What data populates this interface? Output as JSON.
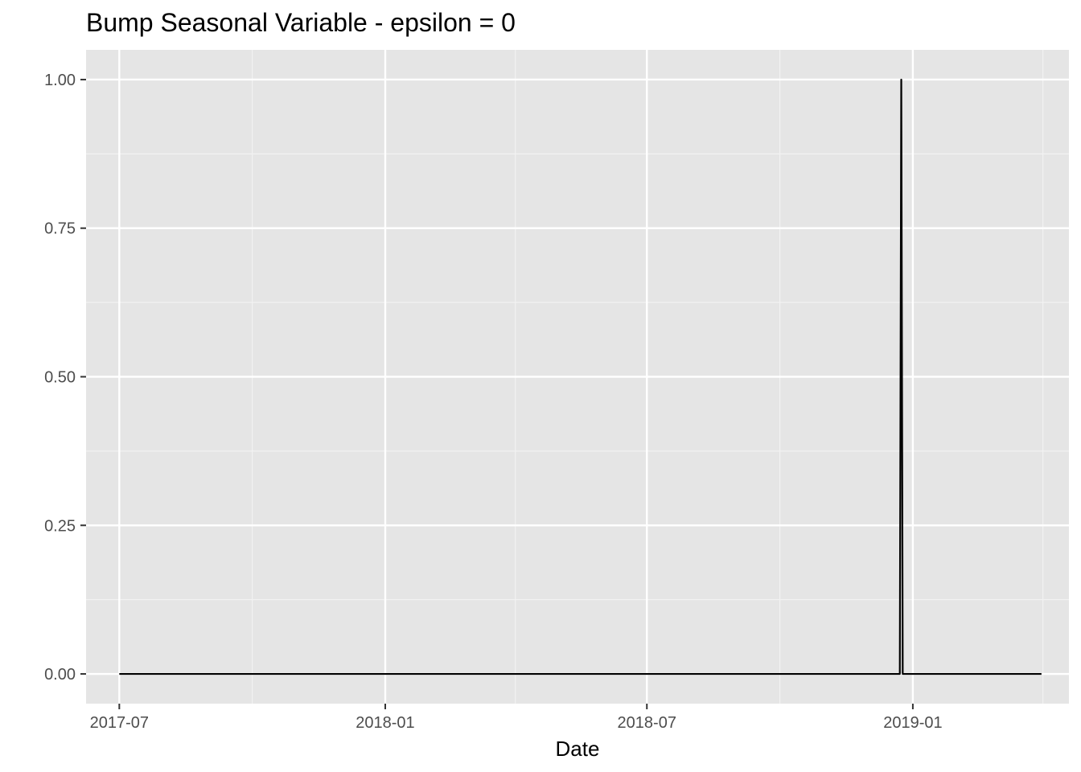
{
  "chart_data": {
    "type": "line",
    "title": "Bump Seasonal Variable - epsilon = 0",
    "xlabel": "Date",
    "ylabel": "",
    "x_type": "date",
    "xlim": [
      "2017-06-08",
      "2019-04-19"
    ],
    "ylim": [
      -0.05,
      1.05
    ],
    "x_ticks": [
      {
        "value": "2017-07-01",
        "label": "2017-07"
      },
      {
        "value": "2018-01-01",
        "label": "2018-01"
      },
      {
        "value": "2018-07-01",
        "label": "2018-07"
      },
      {
        "value": "2019-01-01",
        "label": "2019-01"
      }
    ],
    "x_minor_ticks": [
      "2017-10-01",
      "2018-04-01",
      "2018-10-01",
      "2019-04-01"
    ],
    "y_ticks": [
      {
        "value": 0,
        "label": "0.00"
      },
      {
        "value": 0.25,
        "label": "0.25"
      },
      {
        "value": 0.5,
        "label": "0.50"
      },
      {
        "value": 0.75,
        "label": "0.75"
      },
      {
        "value": 1,
        "label": "1.00"
      }
    ],
    "grid": true,
    "series": [
      {
        "color": "#000000",
        "points": [
          {
            "x": "2017-07-01",
            "y": 0
          },
          {
            "x": "2018-12-23",
            "y": 0
          },
          {
            "x": "2018-12-24",
            "y": 1
          },
          {
            "x": "2018-12-25",
            "y": 0
          },
          {
            "x": "2019-03-31",
            "y": 0
          }
        ]
      }
    ]
  }
}
